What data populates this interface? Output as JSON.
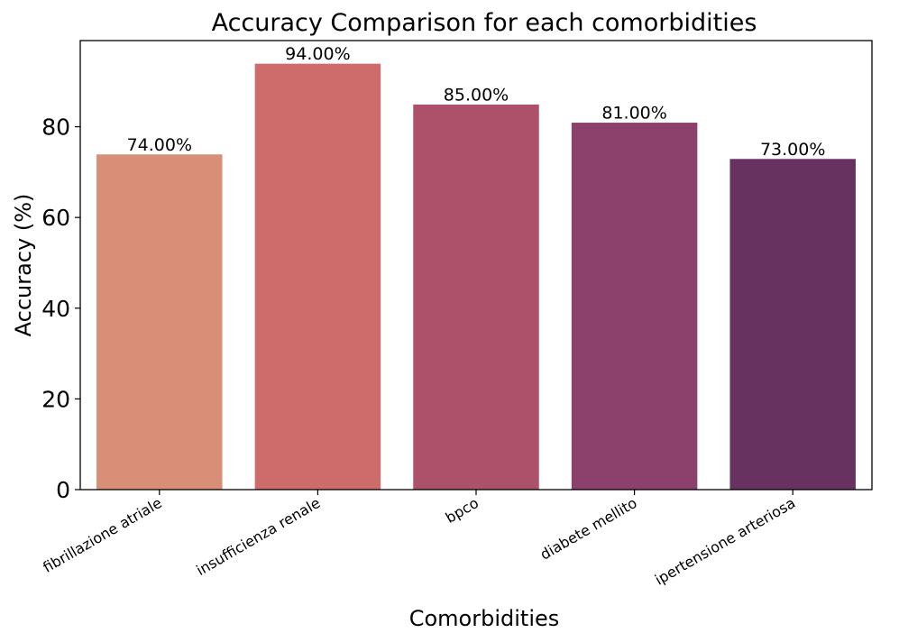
{
  "chart_data": {
    "type": "bar",
    "title": "Accuracy Comparison for each comorbidities",
    "xlabel": "Comorbidities",
    "ylabel": "Accuracy (%)",
    "ylim": [
      0,
      99
    ],
    "yticks": [
      0,
      20,
      40,
      60,
      80
    ],
    "grid": false,
    "legend": "none",
    "categories": [
      "fibrillazione atriale",
      "insufficienza renale",
      "bpco",
      "diabete mellito",
      "ipertensione arteriosa"
    ],
    "values": [
      74,
      94,
      85,
      81,
      73
    ],
    "data_labels": [
      "74.00%",
      "94.00%",
      "85.00%",
      "81.00%",
      "73.00%"
    ],
    "colors": [
      "#d98e77",
      "#ce6b6b",
      "#ad516a",
      "#8b416b",
      "#683260"
    ]
  }
}
